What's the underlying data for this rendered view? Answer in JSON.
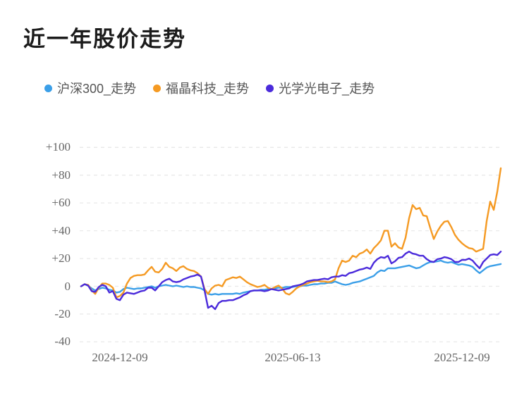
{
  "header": {
    "title": "近一年股价走势"
  },
  "legend": [
    {
      "label": "沪深300_走势",
      "color": "#3B9FE8"
    },
    {
      "label": "福晶科技_走势",
      "color": "#F59A23"
    },
    {
      "label": "光学光电子_走势",
      "color": "#4B2BDB"
    }
  ],
  "colors": {
    "csi300_blue": "#3B9FE8",
    "castech_orange": "#F59A23",
    "optics_purple": "#4B2BDB",
    "gridline": "#e9e9e9",
    "axis_text": "#666666",
    "title_text": "#1b1b1b"
  },
  "chart_data": {
    "type": "line",
    "title": "近一年股价走势",
    "unit": "percent_change",
    "grid": "dashed-horizontal",
    "legend_position": "top-left",
    "x_tick_labels": [
      "2024-12-09",
      "2025-06-13",
      "2025-12-09"
    ],
    "x_range": [
      "2024-12-09",
      "2025-12-09"
    ],
    "y_ticks": [
      100,
      80,
      60,
      40,
      20,
      0,
      -20,
      -40
    ],
    "y_tick_labels": [
      "+100",
      "+80",
      "+60",
      "+40",
      "+20",
      "0",
      "-20",
      "-40"
    ],
    "ylim": [
      -45,
      110
    ],
    "series": [
      {
        "name": "沪深300_走势",
        "color": "#3B9FE8",
        "values": [
          0,
          1.5,
          0.5,
          -1.5,
          -3,
          -2,
          -1,
          -1.5,
          -2.5,
          -3,
          -4.5,
          -4,
          -2,
          -1,
          -1.5,
          -2,
          -1.5,
          -1.5,
          -1,
          -0.5,
          0,
          -1,
          0,
          0.5,
          1,
          0.5,
          0,
          0.5,
          0,
          -0.5,
          0,
          -0.5,
          -0.5,
          -1,
          -1.5,
          -3,
          -5.5,
          -6,
          -5.5,
          -6,
          -5.5,
          -5.5,
          -5.5,
          -5.5,
          -5,
          -5.5,
          -4.5,
          -4,
          -3.5,
          -3,
          -3,
          -2.5,
          -2.5,
          -2,
          -2,
          -1.5,
          -1,
          -1,
          -0.5,
          -0.5,
          -0.5,
          0,
          0,
          0.5,
          0.5,
          1,
          1.5,
          1.5,
          2,
          2,
          2.5,
          2.5,
          3.5,
          2.5,
          1.5,
          1,
          1.5,
          2.5,
          3,
          3.5,
          4.5,
          5.5,
          6.5,
          7.5,
          10,
          11.5,
          11,
          13,
          13,
          13,
          13.5,
          14,
          14.5,
          15,
          14,
          13,
          13.5,
          15,
          16.5,
          17.5,
          17.5,
          18,
          18.5,
          17.5,
          17,
          17.5,
          16.5,
          15.5,
          16,
          15.5,
          15,
          14,
          11.5,
          9.5,
          11.5,
          13.5,
          14.5,
          15,
          15.5,
          16
        ]
      },
      {
        "name": "福晶科技_走势",
        "color": "#F59A23",
        "values": [
          0,
          1.5,
          1,
          -3,
          -5.5,
          -1,
          2,
          2,
          1,
          -1,
          -8,
          -7,
          -4.5,
          2,
          6,
          7.5,
          8,
          8,
          8.5,
          11.5,
          14,
          10.5,
          10,
          12.5,
          17,
          14,
          13,
          11,
          13.5,
          14.5,
          12.5,
          11.5,
          11,
          9.5,
          7,
          -2,
          -5.5,
          -1.5,
          0.5,
          1,
          0,
          4.5,
          5.5,
          6.5,
          6,
          7,
          5,
          3,
          1.5,
          0.5,
          -0.5,
          0,
          1,
          -1,
          -2,
          -0.5,
          0.5,
          -1.5,
          -5,
          -6,
          -4,
          -1.5,
          0,
          1,
          2,
          3,
          3.5,
          4,
          3.5,
          3.5,
          3,
          3.5,
          5,
          13,
          18.5,
          17.5,
          18.5,
          22,
          21,
          23.5,
          24.5,
          26.5,
          23.5,
          27.5,
          30,
          33,
          40,
          40,
          28.5,
          31,
          28,
          27,
          35,
          49,
          58.5,
          55.5,
          56.5,
          51,
          50.5,
          42,
          34,
          39.5,
          43.5,
          46.5,
          47,
          42.5,
          37,
          33.5,
          31,
          29,
          27.5,
          27,
          25,
          26,
          27,
          47,
          61,
          55,
          68,
          85
        ]
      },
      {
        "name": "光学光电子_走势",
        "color": "#4B2BDB",
        "values": [
          0,
          1.5,
          0.5,
          -3.5,
          -4,
          -0.5,
          1,
          0,
          -4.5,
          -3.5,
          -9,
          -10,
          -6,
          -4.5,
          -5,
          -5.5,
          -4.5,
          -3.5,
          -3,
          -1,
          -1,
          -3,
          0,
          3,
          4.5,
          5.5,
          3.5,
          3,
          3.5,
          5,
          6,
          7,
          7.5,
          8.5,
          7,
          -3,
          -15.5,
          -14,
          -16.5,
          -12,
          -10.5,
          -10.5,
          -10,
          -10,
          -9,
          -8,
          -6.5,
          -5.5,
          -3.5,
          -3,
          -3,
          -3,
          -3.5,
          -3,
          -2,
          -2.5,
          -3,
          -2.5,
          -2,
          -1.5,
          0,
          0.5,
          1,
          2,
          3.5,
          4,
          4.5,
          4.5,
          5,
          5.5,
          5,
          6.5,
          7,
          7,
          8,
          7.5,
          9.5,
          10,
          11,
          12,
          12.5,
          13.5,
          12.5,
          17,
          19.5,
          21,
          20.5,
          22,
          16.5,
          18,
          20.5,
          21,
          23.5,
          25,
          23.5,
          23,
          22,
          22,
          19.5,
          18,
          17.5,
          19.5,
          20,
          21,
          20.5,
          19.5,
          17.5,
          17.5,
          19,
          19,
          20,
          18.5,
          15.5,
          13,
          17.5,
          20,
          22.5,
          23,
          22.5,
          25
        ]
      }
    ]
  }
}
